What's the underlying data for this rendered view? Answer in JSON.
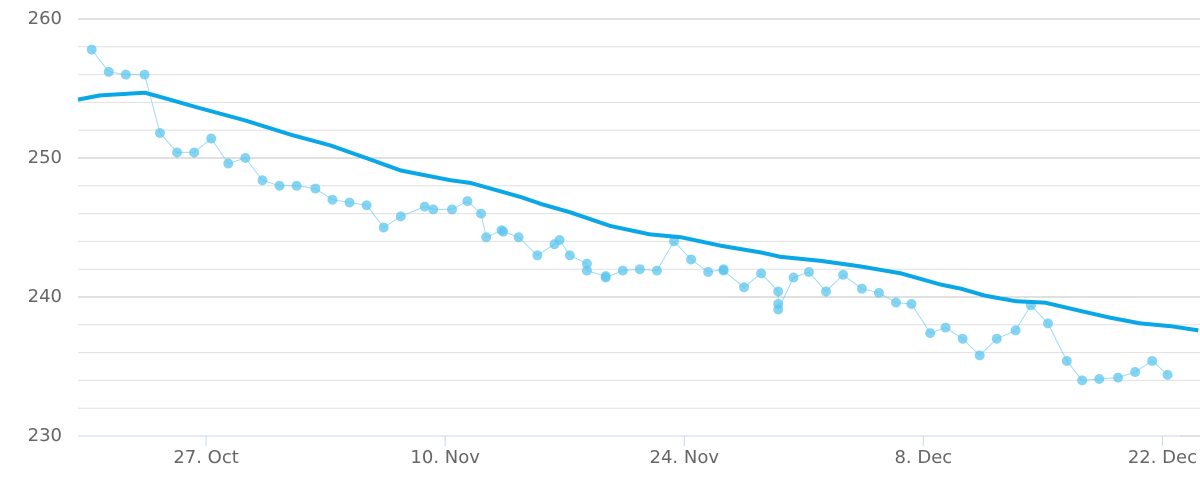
{
  "chart_data": {
    "type": "line",
    "xlim": [
      292.5,
      358.2
    ],
    "xticks": [
      {
        "value": 300,
        "label": "27. Oct"
      },
      {
        "value": 314,
        "label": "10. Nov"
      },
      {
        "value": 328,
        "label": "24. Nov"
      },
      {
        "value": 342,
        "label": "8. Dec"
      },
      {
        "value": 356,
        "label": "22. Dec"
      }
    ],
    "ylim": [
      230,
      260
    ],
    "yticks": [
      230,
      240,
      250,
      260
    ],
    "minor_yticks": [
      232,
      234,
      236,
      238,
      242,
      244,
      246,
      248,
      252,
      254,
      256,
      258
    ],
    "grid": true,
    "series": [
      {
        "color": "#5cc6ee",
        "markers": true,
        "line_width": 1,
        "x": [
          293.3,
          294.3,
          295.3,
          296.4,
          297.3,
          298.3,
          299.3,
          300.3,
          301.3,
          302.3,
          303.3,
          304.3,
          305.3,
          306.4,
          307.4,
          308.4,
          309.4,
          310.4,
          311.4,
          312.8,
          313.3,
          314.4,
          315.3,
          316.1,
          316.4,
          317.3,
          317.4,
          318.3,
          319.4,
          320.4,
          320.7,
          321.3,
          322.3,
          322.3,
          323.4,
          323.4,
          324.4,
          325.4,
          326.4,
          327.4,
          328.4,
          329.4,
          330.3,
          330.3,
          331.5,
          332.5,
          333.5,
          333.5,
          333.5,
          334.4,
          335.3,
          336.3,
          337.3,
          338.4,
          339.4,
          340.4,
          341.3,
          342.4,
          343.3,
          344.3,
          345.3,
          346.3,
          347.4,
          348.3,
          349.3,
          350.4,
          351.3,
          352.3,
          353.4,
          354.4,
          355.4,
          356.3
        ],
        "values": [
          257.8,
          256.2,
          256.0,
          256.0,
          251.8,
          250.4,
          250.4,
          251.4,
          249.6,
          250.0,
          248.4,
          248.0,
          248.0,
          247.8,
          247.0,
          246.8,
          246.6,
          245.0,
          245.8,
          246.5,
          246.3,
          246.3,
          246.9,
          246.0,
          244.3,
          244.8,
          244.7,
          244.3,
          243.0,
          243.8,
          244.1,
          243.0,
          242.4,
          241.9,
          241.5,
          241.4,
          241.9,
          242.0,
          241.9,
          244.0,
          242.7,
          241.8,
          242.0,
          241.9,
          240.7,
          241.7,
          240.4,
          239.5,
          239.1,
          241.4,
          241.8,
          240.4,
          241.6,
          240.6,
          240.3,
          239.6,
          239.5,
          237.4,
          237.8,
          237.0,
          235.8,
          237.0,
          237.6,
          239.4,
          238.1,
          235.4,
          234.0,
          234.1,
          234.2,
          234.6,
          235.4,
          234.4
        ]
      },
      {
        "color": "#0aa7e6",
        "markers": false,
        "line_width": 4,
        "x": [
          292.5,
          293.8,
          296.4,
          297.3,
          299.6,
          302.3,
          304.9,
          307.3,
          309.6,
          311.4,
          314.3,
          315.5,
          318.4,
          319.6,
          321.3,
          323.7,
          326.0,
          327.8,
          330.1,
          332.5,
          333.6,
          336.0,
          338.3,
          340.7,
          343.0,
          344.2,
          345.6,
          347.4,
          349.1,
          351.2,
          353.0,
          354.7,
          356.5,
          358.1
        ],
        "values": [
          254.2,
          254.5,
          254.7,
          254.4,
          253.6,
          252.7,
          251.7,
          250.9,
          249.9,
          249.1,
          248.4,
          248.2,
          247.2,
          246.7,
          246.1,
          245.1,
          244.5,
          244.3,
          243.7,
          243.2,
          242.9,
          242.6,
          242.2,
          241.7,
          240.9,
          240.6,
          240.1,
          239.7,
          239.6,
          239.0,
          238.5,
          238.1,
          237.9,
          237.6
        ]
      }
    ]
  }
}
